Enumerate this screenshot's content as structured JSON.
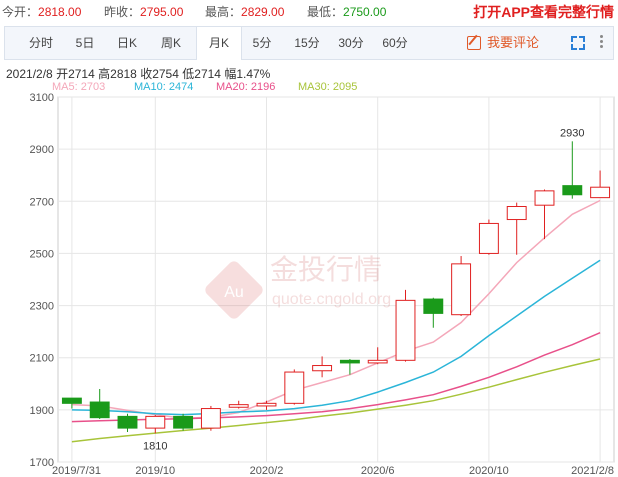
{
  "quote": {
    "open_label": "今开：",
    "open_value": "2818.00",
    "prev_label": "昨收：",
    "prev_value": "2795.00",
    "high_label": "最高：",
    "high_value": "2829.00",
    "low_label": "最低：",
    "low_value": "2750.00",
    "app_link": "打开APP查看完整行情"
  },
  "tabs": [
    {
      "label": "分时"
    },
    {
      "label": "5日"
    },
    {
      "label": "日K"
    },
    {
      "label": "周K"
    },
    {
      "label": "月K"
    },
    {
      "label": "5分"
    },
    {
      "label": "15分"
    },
    {
      "label": "30分"
    },
    {
      "label": "60分"
    }
  ],
  "active_tab": "月K",
  "comment_label": "我要评论",
  "info": {
    "date": "2021/2/8",
    "open_label": "开",
    "open": "2714",
    "high_label": "高",
    "high": "2818",
    "close_label": "收",
    "close": "2754",
    "low_label": "低",
    "low": "2714",
    "change_label": "幅",
    "change": "1.47%"
  },
  "ma_legend": [
    {
      "label": "MA5: 2703",
      "color": "#f4a7b9"
    },
    {
      "label": "MA10: 2474",
      "color": "#2bb5d8"
    },
    {
      "label": "MA20: 2196",
      "color": "#e8508a"
    },
    {
      "label": "MA30: 2095",
      "color": "#a8c43a"
    }
  ],
  "watermark": {
    "text": "金投行情",
    "url": "quote.cngold.org",
    "badge": "Au"
  },
  "colors": {
    "up": "#e02020",
    "down": "#1a9a1a",
    "ma5": "#f4a7b9",
    "ma10": "#2bb5d8",
    "ma20": "#e8508a",
    "ma30": "#a8c43a",
    "grid": "#e6e6e6"
  },
  "chart_data": {
    "type": "candlestick",
    "ylim": [
      1700,
      3100
    ],
    "y_ticks": [
      1700,
      1900,
      2100,
      2300,
      2500,
      2700,
      2900,
      3100
    ],
    "x_ticks": [
      {
        "label": "2019/7/31",
        "index": 0
      },
      {
        "label": "2019/10",
        "index": 3
      },
      {
        "label": "2020/2",
        "index": 7
      },
      {
        "label": "2020/6",
        "index": 11
      },
      {
        "label": "2020/10",
        "index": 15
      },
      {
        "label": "2021/2/8",
        "index": 19
      }
    ],
    "candles": [
      {
        "open": 1945,
        "close": 1925,
        "high": 1945,
        "low": 1905
      },
      {
        "open": 1930,
        "close": 1870,
        "high": 1980,
        "low": 1865
      },
      {
        "open": 1875,
        "close": 1830,
        "high": 1885,
        "low": 1815
      },
      {
        "open": 1830,
        "close": 1875,
        "high": 1880,
        "low": 1810
      },
      {
        "open": 1875,
        "close": 1830,
        "high": 1885,
        "low": 1820
      },
      {
        "open": 1830,
        "close": 1905,
        "high": 1915,
        "low": 1820
      },
      {
        "open": 1910,
        "close": 1920,
        "high": 1935,
        "low": 1905
      },
      {
        "open": 1915,
        "close": 1925,
        "high": 1935,
        "low": 1900
      },
      {
        "open": 1925,
        "close": 2045,
        "high": 2055,
        "low": 1920
      },
      {
        "open": 2050,
        "close": 2070,
        "high": 2105,
        "low": 2025
      },
      {
        "open": 2090,
        "close": 2080,
        "high": 2095,
        "low": 2035
      },
      {
        "open": 2080,
        "close": 2090,
        "high": 2140,
        "low": 2075
      },
      {
        "open": 2090,
        "close": 2320,
        "high": 2360,
        "low": 2085
      },
      {
        "open": 2325,
        "close": 2270,
        "high": 2330,
        "low": 2215
      },
      {
        "open": 2265,
        "close": 2460,
        "high": 2490,
        "low": 2260
      },
      {
        "open": 2500,
        "close": 2615,
        "high": 2630,
        "low": 2495
      },
      {
        "open": 2630,
        "close": 2680,
        "high": 2695,
        "low": 2495
      },
      {
        "open": 2685,
        "close": 2740,
        "high": 2745,
        "low": 2555
      },
      {
        "open": 2760,
        "close": 2725,
        "high": 2930,
        "low": 2710
      },
      {
        "open": 2714,
        "close": 2754,
        "high": 2818,
        "low": 2714
      }
    ],
    "annotations": [
      {
        "label": "2930",
        "index": 18,
        "value": 2930
      },
      {
        "label": "1810",
        "index": 3,
        "value": 1810
      }
    ],
    "series": [
      {
        "name": "MA5",
        "values": [
          1920,
          1915,
          1898,
          1882,
          1868,
          1872,
          1890,
          1930,
          1975,
          2005,
          2035,
          2080,
          2125,
          2160,
          2235,
          2345,
          2465,
          2560,
          2650,
          2703
        ]
      },
      {
        "name": "MA10",
        "values": [
          1900,
          1898,
          1893,
          1885,
          1882,
          1886,
          1892,
          1896,
          1905,
          1918,
          1935,
          1968,
          2005,
          2045,
          2105,
          2185,
          2260,
          2335,
          2405,
          2474
        ]
      },
      {
        "name": "MA20",
        "values": [
          1855,
          1858,
          1861,
          1864,
          1866,
          1869,
          1873,
          1878,
          1885,
          1893,
          1905,
          1920,
          1938,
          1958,
          1990,
          2025,
          2065,
          2110,
          2150,
          2196
        ]
      },
      {
        "name": "MA30",
        "values": [
          1778,
          1790,
          1801,
          1811,
          1821,
          1830,
          1840,
          1851,
          1862,
          1876,
          1888,
          1903,
          1918,
          1935,
          1960,
          1987,
          2016,
          2044,
          2070,
          2095
        ]
      }
    ]
  }
}
